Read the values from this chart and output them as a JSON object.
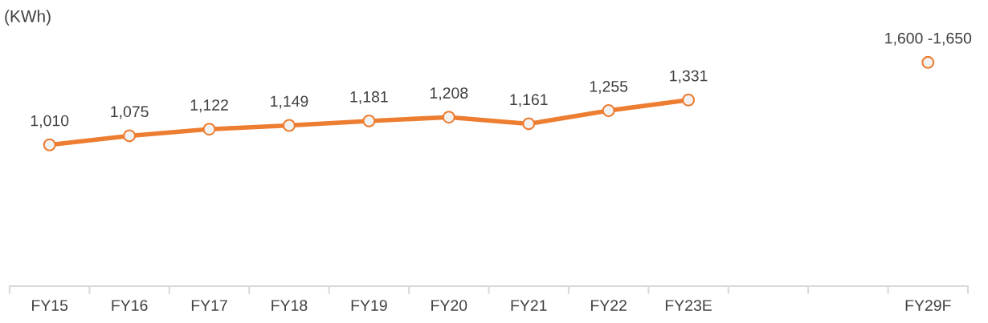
{
  "chart_data": {
    "type": "line",
    "ylabel": "(KWh)",
    "categories": [
      "FY15",
      "FY16",
      "FY17",
      "FY18",
      "FY19",
      "FY20",
      "FY21",
      "FY22",
      "FY23E",
      null,
      null,
      "FY29F"
    ],
    "series": [
      {
        "color": "#ed7d31",
        "values": [
          1010,
          1075,
          1122,
          1149,
          1181,
          1208,
          1161,
          1255,
          1331,
          null,
          null,
          null
        ],
        "value_labels": [
          "1,010",
          "1,075",
          "1,122",
          "1,149",
          "1,181",
          "1,208",
          "1,161",
          "1,255",
          "1,331",
          null,
          null,
          null
        ]
      },
      {
        "type": "scatter",
        "color": "#ed7d31",
        "values": [
          null,
          null,
          null,
          null,
          null,
          null,
          null,
          null,
          null,
          null,
          null,
          1600
        ],
        "value_labels": [
          null,
          null,
          null,
          null,
          null,
          null,
          null,
          null,
          null,
          null,
          null,
          "1,600 -1,650"
        ]
      }
    ],
    "marker": "circle",
    "line_style": "solid",
    "grid": false,
    "legend": false,
    "tick_labels": "x"
  }
}
